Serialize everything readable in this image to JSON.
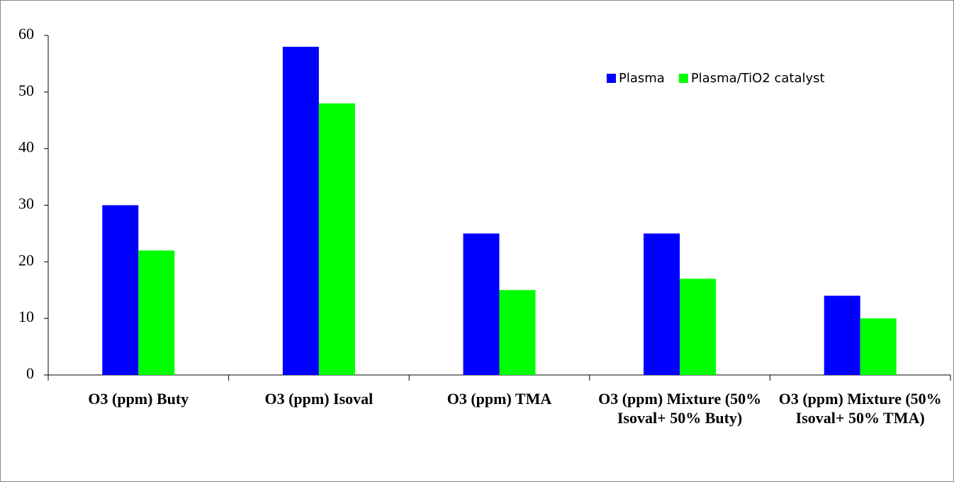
{
  "chart_data": {
    "type": "bar",
    "categories": [
      "O3 (ppm) Buty",
      "O3 (ppm) Isoval",
      "O3 (ppm) TMA",
      "O3 (ppm) Mixture (50% Isoval+ 50% Buty)",
      "O3 (ppm) Mixture (50% Isoval+ 50% TMA)"
    ],
    "series": [
      {
        "name": "Plasma",
        "color": "#0000ff",
        "values": [
          30,
          58,
          25,
          25,
          14
        ]
      },
      {
        "name": "Plasma/TiO2 catalyst",
        "color": "#00ff00",
        "values": [
          22,
          48,
          15,
          17,
          10
        ]
      }
    ],
    "ylim": [
      0,
      60
    ],
    "yticks": [
      0,
      10,
      20,
      30,
      40,
      50,
      60
    ],
    "grid": false,
    "legend": "top-right"
  }
}
